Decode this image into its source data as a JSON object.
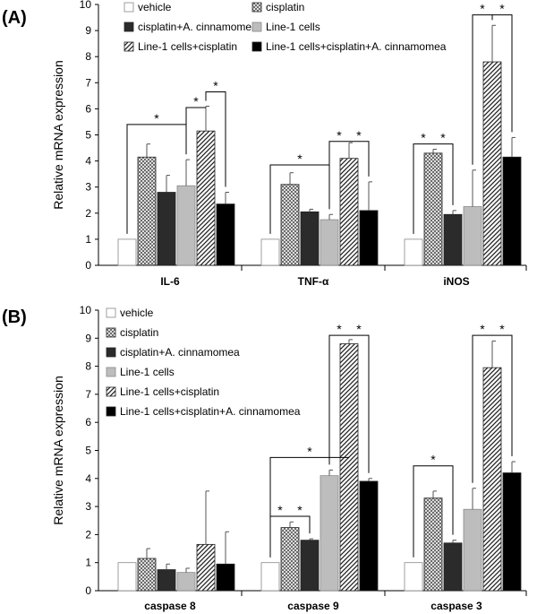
{
  "chart_data": [
    {
      "panel_label": "(A)",
      "type": "bar",
      "ylabel": "Relative mRNA expression",
      "xlabel": "",
      "ylim": [
        0,
        10
      ],
      "yticks": [
        "0",
        "1",
        "2",
        "3",
        "4",
        "5",
        "6",
        "7",
        "8",
        "9",
        "10"
      ],
      "categories": [
        "IL-6",
        "TNF-α",
        "iNOS"
      ],
      "legend_position": "top",
      "series": [
        {
          "name": "vehicle",
          "pattern": "white",
          "values": [
            1,
            1,
            1
          ],
          "errors": [
            0,
            0,
            0
          ]
        },
        {
          "name": "cisplatin",
          "pattern": "crosshatch",
          "values": [
            4.15,
            3.1,
            4.3
          ],
          "errors": [
            0.5,
            0.45,
            0.15
          ]
        },
        {
          "name": "cisplatin+A. cinnamomea",
          "pattern": "dark",
          "values": [
            2.8,
            2.05,
            1.95
          ],
          "errors": [
            0.65,
            0.1,
            0.15
          ]
        },
        {
          "name": "Line-1 cells",
          "pattern": "lightgray",
          "values": [
            3.05,
            1.75,
            2.25
          ],
          "errors": [
            1.0,
            0.2,
            1.4
          ]
        },
        {
          "name": "Line-1 cells+cisplatin",
          "pattern": "diagonal",
          "values": [
            5.15,
            4.1,
            7.8
          ],
          "errors": [
            0.95,
            0.6,
            1.4
          ]
        },
        {
          "name": "Line-1 cells+cisplatin+A. cinnamomea",
          "pattern": "black",
          "values": [
            2.35,
            2.1,
            4.15
          ],
          "errors": [
            0.45,
            1.1,
            0.75
          ]
        }
      ],
      "legend_layout": [
        [
          "vehicle",
          "cisplatin"
        ],
        [
          "cisplatin+A. cinnamomea",
          "Line-1 cells"
        ],
        [
          "Line-1 cells+cisplatin",
          "Line-1 cells+cisplatin+A. cinnamomea"
        ]
      ],
      "significance": [
        {
          "category": 0,
          "from": 0,
          "to": 3,
          "y": 5.4,
          "label": "*"
        },
        {
          "category": 0,
          "from": 3,
          "to": 4,
          "y": 6.05,
          "label": "*"
        },
        {
          "category": 0,
          "from": 4,
          "to": 5,
          "y": 6.65,
          "label": "*"
        },
        {
          "category": 1,
          "from": 0,
          "to": 3,
          "y": 3.85,
          "label": "*"
        },
        {
          "category": 1,
          "from": 3,
          "to": 4,
          "y": 4.75,
          "label": "*"
        },
        {
          "category": 1,
          "from": 4,
          "to": 5,
          "y": 4.75,
          "label": "*"
        },
        {
          "category": 2,
          "from": 0,
          "to": 1,
          "y": 4.65,
          "label": "*"
        },
        {
          "category": 2,
          "from": 1,
          "to": 2,
          "y": 4.65,
          "label": "*"
        },
        {
          "category": 2,
          "from": 3,
          "to": 4,
          "y": 9.6,
          "label": "*"
        },
        {
          "category": 2,
          "from": 4,
          "to": 5,
          "y": 9.6,
          "label": "*"
        }
      ]
    },
    {
      "panel_label": "(B)",
      "type": "bar",
      "ylabel": "Relative mRNA expression",
      "xlabel": "",
      "ylim": [
        0,
        10
      ],
      "yticks": [
        "0",
        "1",
        "2",
        "3",
        "4",
        "5",
        "6",
        "7",
        "8",
        "9",
        "10"
      ],
      "categories": [
        "caspase 8",
        "caspase 9",
        "caspase 3"
      ],
      "legend_position": "top-left",
      "series": [
        {
          "name": "vehicle",
          "pattern": "white",
          "values": [
            1,
            1,
            1
          ],
          "errors": [
            0,
            0,
            0
          ]
        },
        {
          "name": "cisplatin",
          "pattern": "crosshatch",
          "values": [
            1.15,
            2.25,
            3.3
          ],
          "errors": [
            0.35,
            0.2,
            0.25
          ]
        },
        {
          "name": "cisplatin+A. cinnamomea",
          "pattern": "dark",
          "values": [
            0.75,
            1.8,
            1.7
          ],
          "errors": [
            0.2,
            0.05,
            0.1
          ]
        },
        {
          "name": "Line-1 cells",
          "pattern": "lightgray",
          "values": [
            0.65,
            4.1,
            2.9
          ],
          "errors": [
            0.15,
            0.2,
            0.75
          ]
        },
        {
          "name": "Line-1 cells+cisplatin",
          "pattern": "diagonal",
          "values": [
            1.65,
            8.8,
            7.95
          ],
          "errors": [
            1.9,
            0.15,
            0.95
          ]
        },
        {
          "name": "Line-1 cells+cisplatin+A. cinnamomea",
          "pattern": "black",
          "values": [
            0.95,
            3.9,
            4.2
          ],
          "errors": [
            1.15,
            0.1,
            0.4
          ]
        }
      ],
      "legend_layout": [
        [
          "vehicle"
        ],
        [
          "cisplatin"
        ],
        [
          "cisplatin+A. cinnamomea"
        ],
        [
          "Line-1 cells"
        ],
        [
          "Line-1 cells+cisplatin"
        ],
        [
          "Line-1 cells+cisplatin+A. cinnamomea"
        ]
      ],
      "significance": [
        {
          "category": 1,
          "from": 0,
          "to": 1,
          "y": 2.65,
          "label": "*"
        },
        {
          "category": 1,
          "from": 1,
          "to": 2,
          "y": 2.65,
          "label": "*"
        },
        {
          "category": 1,
          "from": 0,
          "to": 4,
          "y": 4.75,
          "label": "*"
        },
        {
          "category": 1,
          "from": 3,
          "to": 4,
          "y": 9.1,
          "label": "*"
        },
        {
          "category": 1,
          "from": 4,
          "to": 5,
          "y": 9.1,
          "label": "*"
        },
        {
          "category": 2,
          "from": 0,
          "to": 2,
          "y": 4.45,
          "label": "*"
        },
        {
          "category": 2,
          "from": 3,
          "to": 4,
          "y": 9.1,
          "label": "*"
        },
        {
          "category": 2,
          "from": 4,
          "to": 5,
          "y": 9.1,
          "label": "*"
        }
      ]
    }
  ]
}
